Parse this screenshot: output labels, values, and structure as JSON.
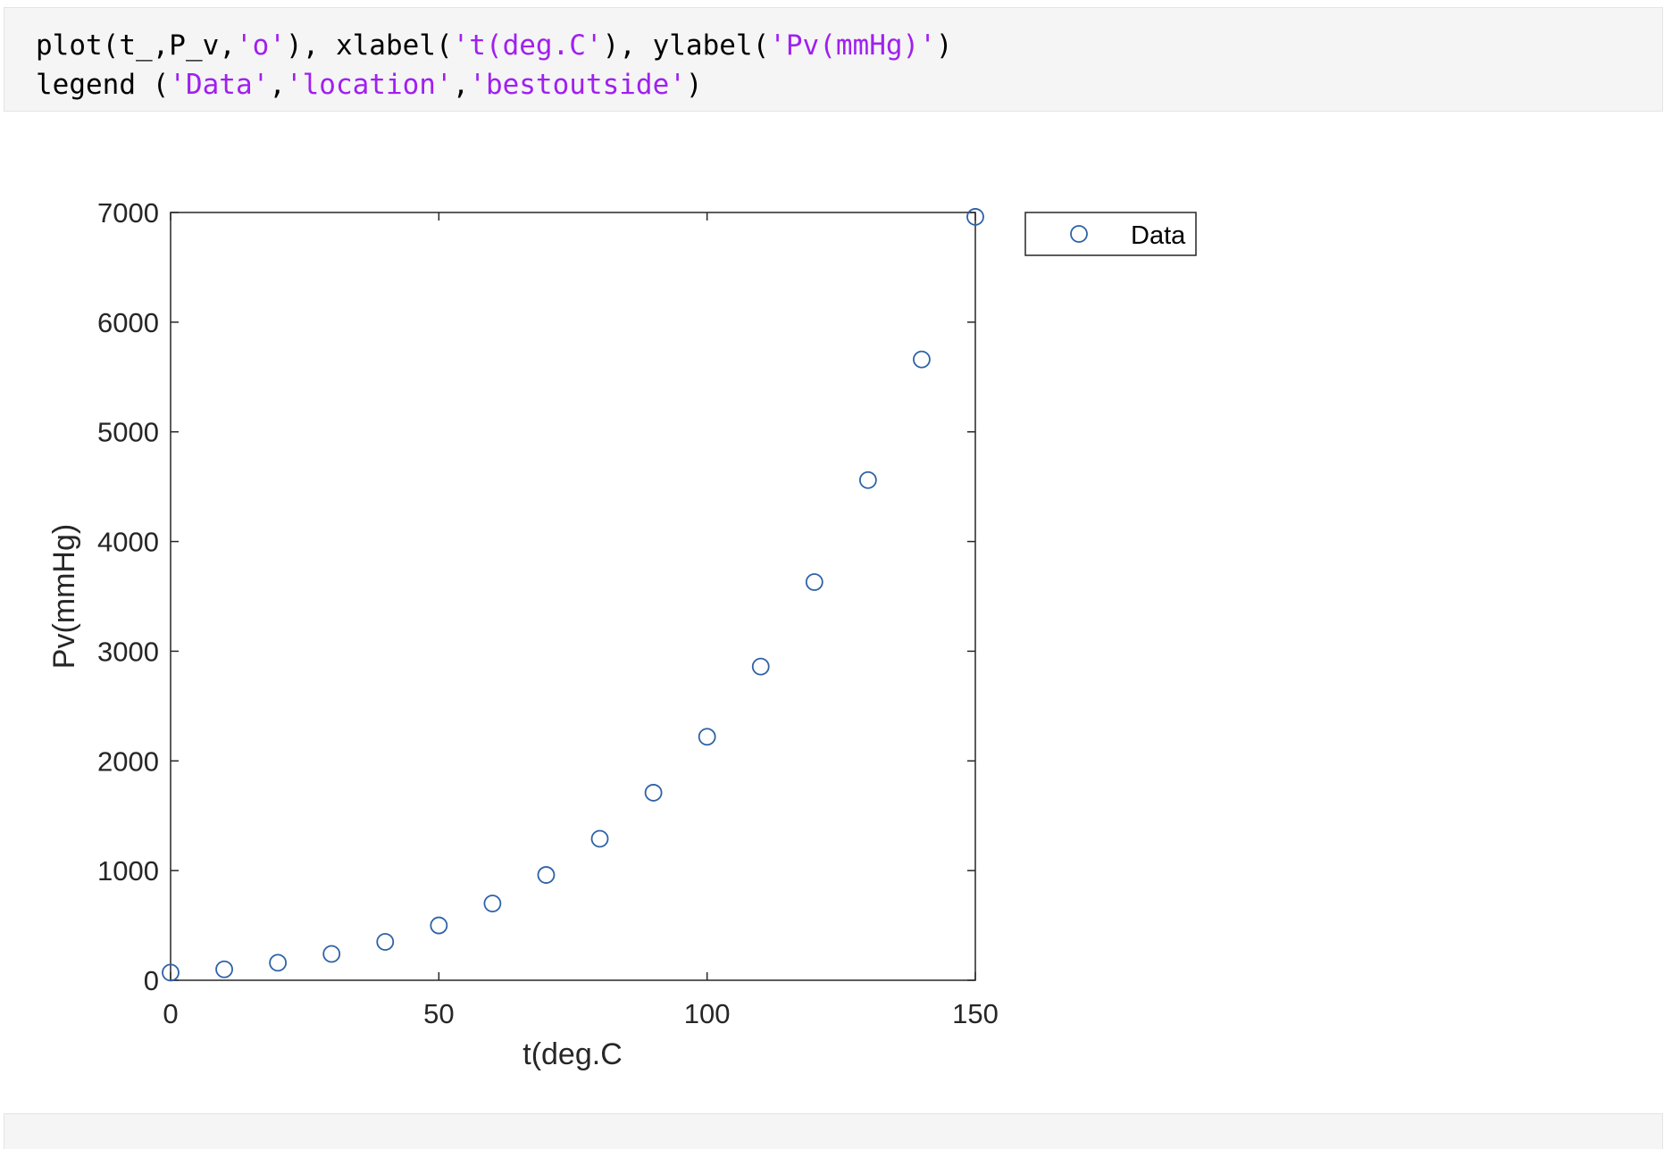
{
  "code_cell": {
    "line1": [
      {
        "t": "plot(t_,P_v,",
        "s": false
      },
      {
        "t": "'o'",
        "s": true
      },
      {
        "t": "), xlabel(",
        "s": false
      },
      {
        "t": "'t(deg.C'",
        "s": true
      },
      {
        "t": "), ylabel(",
        "s": false
      },
      {
        "t": "'Pv(mmHg)'",
        "s": true
      },
      {
        "t": ")",
        "s": false
      }
    ],
    "line2": [
      {
        "t": "legend (",
        "s": false
      },
      {
        "t": "'Data'",
        "s": true
      },
      {
        "t": ",",
        "s": false
      },
      {
        "t": "'location'",
        "s": true
      },
      {
        "t": ",",
        "s": false
      },
      {
        "t": "'bestoutside'",
        "s": true
      },
      {
        "t": ")",
        "s": false
      }
    ]
  },
  "colors": {
    "marker": "#2e62a6",
    "string_token": "#a020f0",
    "axis": "#262626"
  },
  "chart_data": {
    "type": "scatter",
    "marker": "o",
    "xlabel": "t(deg.C",
    "ylabel": "Pv(mmHg)",
    "xlim": [
      0,
      150
    ],
    "ylim": [
      0,
      7000
    ],
    "xticks": [
      0,
      50,
      100,
      150
    ],
    "xtick_labels": [
      "0",
      "50",
      "100",
      "150"
    ],
    "yticks": [
      0,
      1000,
      2000,
      3000,
      4000,
      5000,
      6000,
      7000
    ],
    "ytick_labels": [
      "0",
      "1000",
      "2000",
      "3000",
      "4000",
      "5000",
      "6000",
      "7000"
    ],
    "grid": false,
    "legend": {
      "location": "outside-top-right",
      "entries": [
        "Data"
      ]
    },
    "series": [
      {
        "name": "Data",
        "x": [
          0,
          10,
          20,
          30,
          40,
          50,
          60,
          70,
          80,
          90,
          100,
          110,
          120,
          130,
          140,
          150
        ],
        "y": [
          70,
          100,
          160,
          240,
          350,
          500,
          700,
          960,
          1290,
          1710,
          2220,
          2860,
          3630,
          4560,
          5660,
          6960
        ]
      }
    ]
  }
}
